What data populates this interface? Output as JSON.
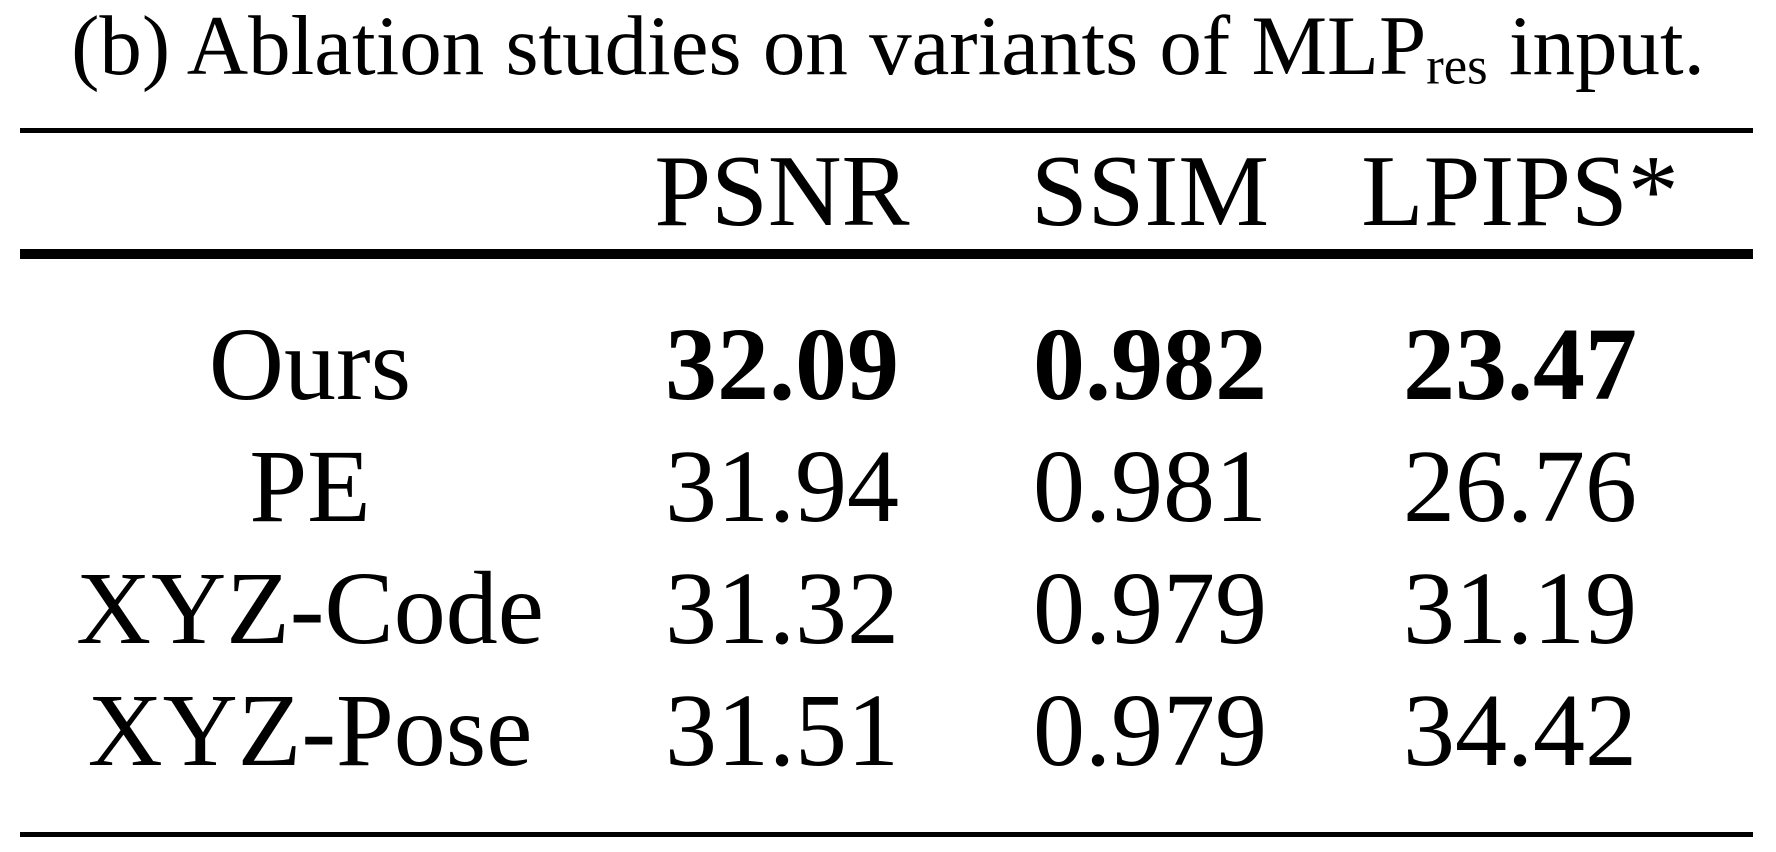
{
  "caption": {
    "prefix": "(b) Ablation studies on variants of MLP",
    "subscript": "res",
    "suffix": "input."
  },
  "table": {
    "header": {
      "label_col": "",
      "metric_1": "PSNR",
      "metric_2": "SSIM",
      "metric_3": "LPIPS*"
    },
    "rows": [
      {
        "label": "Ours",
        "psnr": "32.09",
        "ssim": "0.982",
        "lpips": "23.47",
        "bold_values": true
      },
      {
        "label": "PE",
        "psnr": "31.94",
        "ssim": "0.981",
        "lpips": "26.76",
        "bold_values": false
      },
      {
        "label": "XYZ-Code",
        "psnr": "31.32",
        "ssim": "0.979",
        "lpips": "31.19",
        "bold_values": false
      },
      {
        "label": "XYZ-Pose",
        "psnr": "31.51",
        "ssim": "0.979",
        "lpips": "34.42",
        "bold_values": false
      }
    ]
  },
  "colors": {
    "text": "#000000",
    "background": "#ffffff",
    "rule": "#000000"
  }
}
